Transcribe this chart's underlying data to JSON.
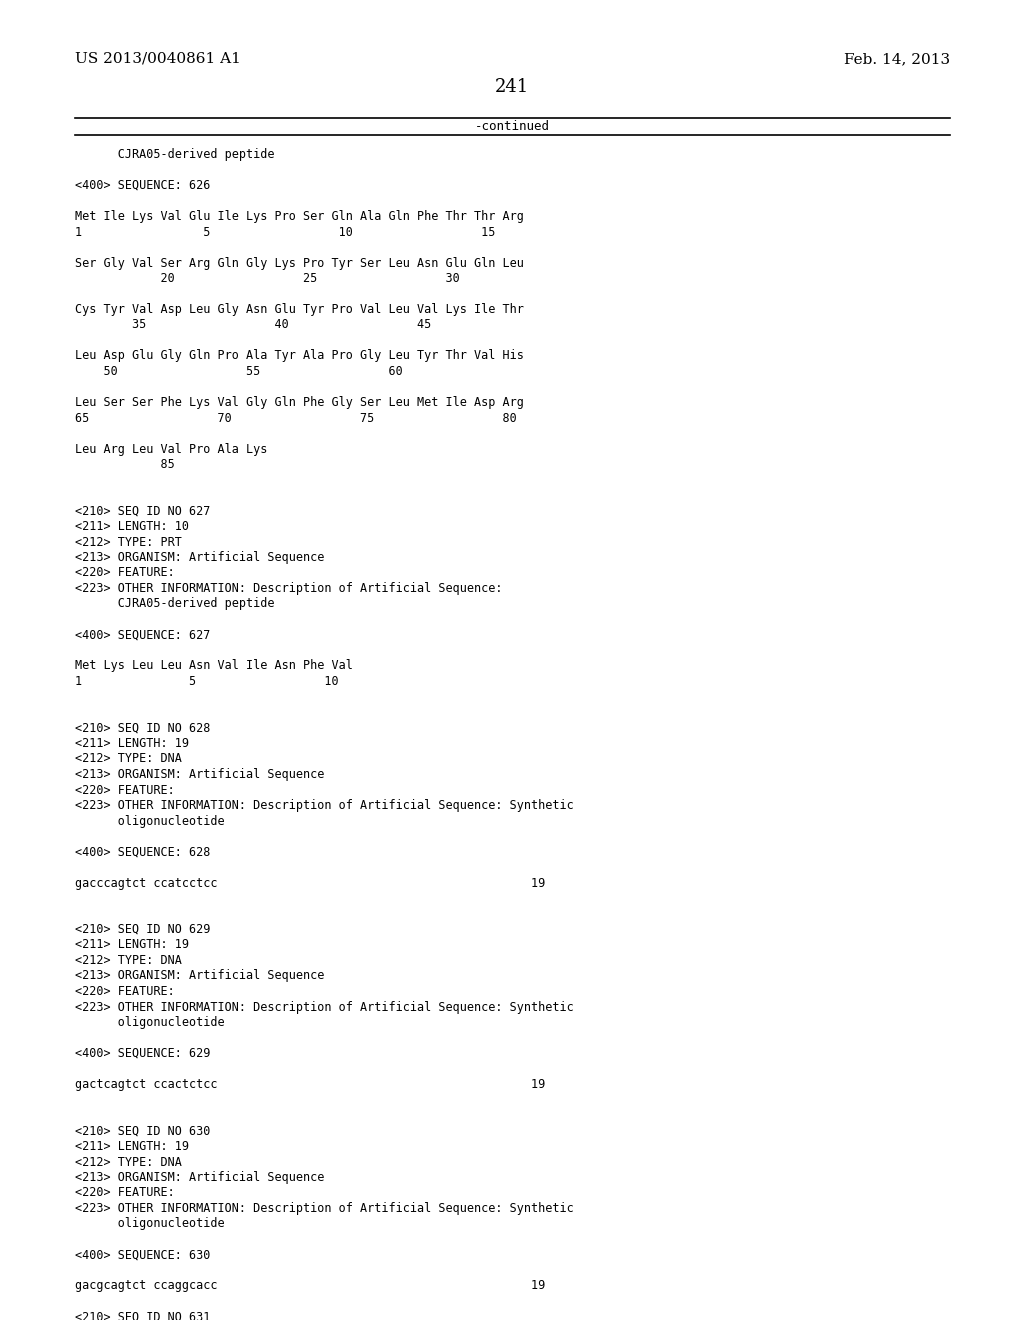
{
  "header_left": "US 2013/0040861 A1",
  "header_right": "Feb. 14, 2013",
  "page_number": "241",
  "continued_text": "-continued",
  "background_color": "#ffffff",
  "text_color": "#000000",
  "body_lines": [
    "      CJRA05-derived peptide",
    "",
    "<400> SEQUENCE: 626",
    "",
    "Met Ile Lys Val Glu Ile Lys Pro Ser Gln Ala Gln Phe Thr Thr Arg",
    "1                 5                  10                  15",
    "",
    "Ser Gly Val Ser Arg Gln Gly Lys Pro Tyr Ser Leu Asn Glu Gln Leu",
    "            20                  25                  30",
    "",
    "Cys Tyr Val Asp Leu Gly Asn Glu Tyr Pro Val Leu Val Lys Ile Thr",
    "        35                  40                  45",
    "",
    "Leu Asp Glu Gly Gln Pro Ala Tyr Ala Pro Gly Leu Tyr Thr Val His",
    "    50                  55                  60",
    "",
    "Leu Ser Ser Phe Lys Val Gly Gln Phe Gly Ser Leu Met Ile Asp Arg",
    "65                  70                  75                  80",
    "",
    "Leu Arg Leu Val Pro Ala Lys",
    "            85",
    "",
    "",
    "<210> SEQ ID NO 627",
    "<211> LENGTH: 10",
    "<212> TYPE: PRT",
    "<213> ORGANISM: Artificial Sequence",
    "<220> FEATURE:",
    "<223> OTHER INFORMATION: Description of Artificial Sequence:",
    "      CJRA05-derived peptide",
    "",
    "<400> SEQUENCE: 627",
    "",
    "Met Lys Leu Leu Asn Val Ile Asn Phe Val",
    "1               5                  10",
    "",
    "",
    "<210> SEQ ID NO 628",
    "<211> LENGTH: 19",
    "<212> TYPE: DNA",
    "<213> ORGANISM: Artificial Sequence",
    "<220> FEATURE:",
    "<223> OTHER INFORMATION: Description of Artificial Sequence: Synthetic",
    "      oligonucleotide",
    "",
    "<400> SEQUENCE: 628",
    "",
    "gacccagtct ccatcctcc                                            19",
    "",
    "",
    "<210> SEQ ID NO 629",
    "<211> LENGTH: 19",
    "<212> TYPE: DNA",
    "<213> ORGANISM: Artificial Sequence",
    "<220> FEATURE:",
    "<223> OTHER INFORMATION: Description of Artificial Sequence: Synthetic",
    "      oligonucleotide",
    "",
    "<400> SEQUENCE: 629",
    "",
    "gactcagtct ccactctcc                                            19",
    "",
    "",
    "<210> SEQ ID NO 630",
    "<211> LENGTH: 19",
    "<212> TYPE: DNA",
    "<213> ORGANISM: Artificial Sequence",
    "<220> FEATURE:",
    "<223> OTHER INFORMATION: Description of Artificial Sequence: Synthetic",
    "      oligonucleotide",
    "",
    "<400> SEQUENCE: 630",
    "",
    "gacgcagtct ccaggcacc                                            19",
    "",
    "<210> SEQ ID NO 631"
  ]
}
